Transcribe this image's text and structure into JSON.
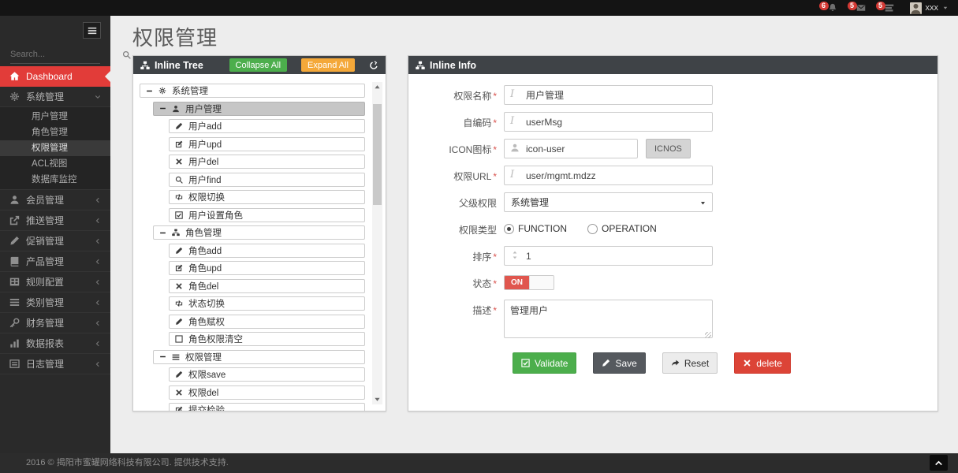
{
  "navbar": {
    "notifications": [
      {
        "icon": "bell-icon",
        "count": "6"
      },
      {
        "icon": "envelope-icon",
        "count": "5"
      },
      {
        "icon": "tasks-icon",
        "count": "5"
      }
    ],
    "user": {
      "name": "xxx",
      "avatar_icon": "person-icon",
      "caret_icon": "caret-down-icon"
    }
  },
  "sidebar": {
    "search_placeholder": "Search...",
    "menu": [
      {
        "icon": "home-icon",
        "label": "Dashboard",
        "active": true
      },
      {
        "icon": "cogs-icon",
        "label": "系统管理",
        "expanded": true,
        "children": [
          {
            "label": "用户管理"
          },
          {
            "label": "角色管理"
          },
          {
            "label": "权限管理",
            "active": true
          },
          {
            "label": "ACL视图"
          },
          {
            "label": "数据库监控"
          }
        ]
      },
      {
        "icon": "user-icon",
        "label": "会员管理"
      },
      {
        "icon": "share-icon",
        "label": "推送管理"
      },
      {
        "icon": "pencil-icon",
        "label": "促销管理"
      },
      {
        "icon": "book-icon",
        "label": "产品管理"
      },
      {
        "icon": "table-icon",
        "label": "规则配置"
      },
      {
        "icon": "list-icon",
        "label": "类别管理"
      },
      {
        "icon": "key-icon",
        "label": "财务管理"
      },
      {
        "icon": "chart-icon",
        "label": "数据报表"
      },
      {
        "icon": "file-icon",
        "label": "日志管理"
      }
    ]
  },
  "page": {
    "title": "权限管理"
  },
  "tree_panel": {
    "title": "Inline Tree",
    "title_icon": "sitemap-icon",
    "collapse_label": "Collapse All",
    "expand_label": "Expand All",
    "refresh_icon": "refresh-icon",
    "rows": [
      {
        "level": 0,
        "toggle": true,
        "icon": "cogs-icon",
        "label": "系统管理"
      },
      {
        "level": 1,
        "toggle": true,
        "icon": "user-icon",
        "label": "用户管理",
        "selected": true
      },
      {
        "level": 2,
        "icon": "pencil-icon",
        "label": "用户add"
      },
      {
        "level": 2,
        "icon": "edit-icon",
        "label": "用户upd"
      },
      {
        "level": 2,
        "icon": "x-icon",
        "label": "用户del"
      },
      {
        "level": 2,
        "icon": "search-icon",
        "label": "用户find"
      },
      {
        "level": 2,
        "icon": "retweet-icon",
        "label": "权限切换"
      },
      {
        "level": 2,
        "icon": "check-square-icon",
        "label": "用户设置角色"
      },
      {
        "level": 1,
        "toggle": true,
        "icon": "sitemap-icon",
        "label": "角色管理"
      },
      {
        "level": 2,
        "icon": "pencil-icon",
        "label": "角色add"
      },
      {
        "level": 2,
        "icon": "edit-icon",
        "label": "角色upd"
      },
      {
        "level": 2,
        "icon": "x-icon",
        "label": "角色del"
      },
      {
        "level": 2,
        "icon": "retweet-icon",
        "label": "状态切换"
      },
      {
        "level": 2,
        "icon": "pencil-icon",
        "label": "角色赋权"
      },
      {
        "level": 2,
        "icon": "square-icon",
        "label": "角色权限清空"
      },
      {
        "level": 1,
        "toggle": true,
        "icon": "list-icon",
        "label": "权限管理"
      },
      {
        "level": 2,
        "icon": "pencil-icon",
        "label": "权限save"
      },
      {
        "level": 2,
        "icon": "x-icon",
        "label": "权限del"
      },
      {
        "level": 2,
        "icon": "edit-icon",
        "label": "提交检验"
      }
    ]
  },
  "info_panel": {
    "title": "Inline Info",
    "title_icon": "sitemap-icon",
    "fields": [
      {
        "name": "permission-name",
        "label": "权限名称",
        "required": true,
        "type": "text",
        "icon": "italic-icon",
        "value": "用户管理"
      },
      {
        "name": "self-code",
        "label": "自编码",
        "required": true,
        "type": "text",
        "icon": "italic-icon",
        "value": "userMsg"
      },
      {
        "name": "icon-field",
        "label": "ICON图标",
        "required": true,
        "type": "text-button",
        "icon": "user-icon",
        "value": "icon-user",
        "button_label": "ICNOS"
      },
      {
        "name": "permission-url",
        "label": "权限URL",
        "required": true,
        "type": "text",
        "icon": "italic-icon",
        "value": "user/mgmt.mdzz"
      },
      {
        "name": "parent-permission",
        "label": "父级权限",
        "required": false,
        "type": "select",
        "value": "系统管理"
      },
      {
        "name": "permission-type",
        "label": "权限类型",
        "required": false,
        "type": "radio",
        "options": [
          {
            "label": "FUNCTION",
            "checked": true
          },
          {
            "label": "OPERATION",
            "checked": false
          }
        ]
      },
      {
        "name": "sort-order",
        "label": "排序",
        "required": true,
        "type": "text",
        "icon": "sort-icon",
        "value": "1"
      },
      {
        "name": "status",
        "label": "状态",
        "required": true,
        "type": "toggle",
        "value": "ON"
      },
      {
        "name": "description",
        "label": "描述",
        "required": true,
        "type": "textarea",
        "value": "管理用户"
      }
    ],
    "buttons": [
      {
        "icon": "check-square-icon",
        "label": "Validate",
        "style": "success"
      },
      {
        "icon": "pencil-icon",
        "label": "Save",
        "style": "dark"
      },
      {
        "icon": "reply-icon",
        "label": "Reset",
        "style": "default"
      },
      {
        "icon": "x-icon",
        "label": "delete",
        "style": "danger"
      }
    ]
  },
  "footer": {
    "text": "2016 © 揭阳市蜜罐网络科技有限公司. 提供技术支持."
  },
  "colors": {
    "accent_red": "#e23c39",
    "success_green": "#4cae4c",
    "warning_orange": "#f4a839",
    "danger_red": "#dc4437",
    "panel_header": "#3f4347",
    "toggle_on_red": "#e0564e",
    "sidebar_bg": "#2a2a2a",
    "navbar_bg": "#141414"
  }
}
